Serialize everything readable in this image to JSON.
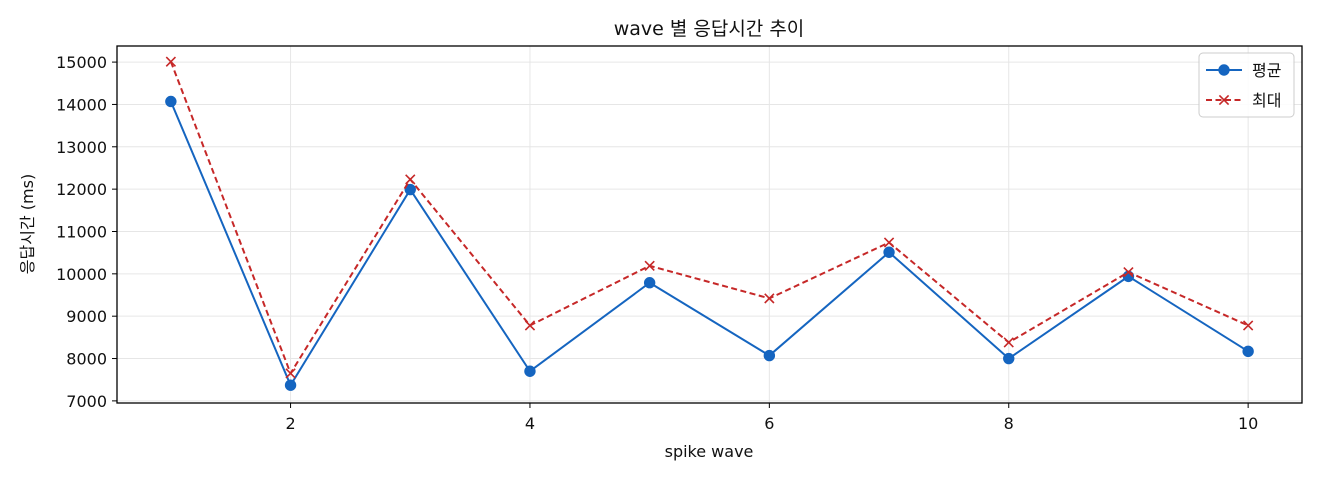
{
  "chart_data": {
    "type": "line",
    "title": "wave 별 응답시간 추이",
    "xlabel": "spike wave",
    "ylabel": "응답시간 (ms)",
    "x": [
      1,
      2,
      3,
      4,
      5,
      6,
      7,
      8,
      9,
      10
    ],
    "xticks": [
      2,
      4,
      6,
      8,
      10
    ],
    "yticks": [
      7000,
      8000,
      9000,
      10000,
      11000,
      12000,
      13000,
      14000,
      15000
    ],
    "xlim": [
      0.55,
      10.45
    ],
    "ylim": [
      6950,
      15380
    ],
    "grid": true,
    "legend_position": "top-right",
    "series": [
      {
        "name": "평균",
        "values": [
          14070,
          7370,
          11990,
          7700,
          9790,
          8070,
          10510,
          8000,
          9940,
          8170
        ],
        "color": "#1565c0",
        "line_style": "solid",
        "marker": "circle"
      },
      {
        "name": "최대",
        "values": [
          15010,
          7650,
          12230,
          8780,
          10190,
          9420,
          10740,
          8380,
          10040,
          8780
        ],
        "color": "#c62828",
        "line_style": "dashed",
        "marker": "x"
      }
    ]
  }
}
